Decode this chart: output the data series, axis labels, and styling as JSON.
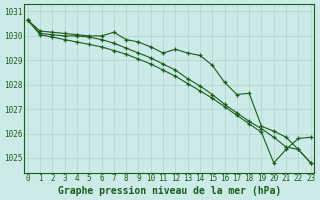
{
  "title": "Graphe pression niveau de la mer (hPa)",
  "xlabel_hours": [
    0,
    1,
    2,
    3,
    4,
    5,
    6,
    7,
    8,
    9,
    10,
    11,
    12,
    13,
    14,
    15,
    16,
    17,
    18,
    19,
    20,
    21,
    22,
    23
  ],
  "line1": [
    1030.65,
    1030.2,
    1030.15,
    1030.1,
    1030.05,
    1030.0,
    1030.0,
    1030.15,
    1029.85,
    1029.75,
    1029.55,
    1029.3,
    1029.45,
    1029.3,
    1029.2,
    1028.8,
    1028.1,
    1027.6,
    1027.65,
    1026.3,
    1026.1,
    1025.85,
    1025.35,
    1024.8
  ],
  "line2": [
    1030.65,
    1030.1,
    1030.05,
    1030.0,
    1030.0,
    1029.95,
    1029.85,
    1029.7,
    1029.5,
    1029.3,
    1029.1,
    1028.85,
    1028.6,
    1028.25,
    1027.95,
    1027.6,
    1027.2,
    1026.85,
    1026.5,
    1026.2,
    1025.85,
    1025.45,
    1025.35,
    1024.8
  ],
  "line3": [
    1030.65,
    1030.05,
    1029.95,
    1029.85,
    1029.75,
    1029.65,
    1029.55,
    1029.4,
    1029.25,
    1029.05,
    1028.85,
    1028.6,
    1028.35,
    1028.05,
    1027.75,
    1027.45,
    1027.1,
    1026.75,
    1026.4,
    1026.05,
    1024.8,
    1025.35,
    1025.8,
    1025.85
  ],
  "ylim": [
    1024.4,
    1031.3
  ],
  "yticks": [
    1025,
    1026,
    1027,
    1028,
    1029,
    1030,
    1031
  ],
  "line_color": "#1a5c1a",
  "bg_color": "#cceae8",
  "grid_color": "#b0d4d0",
  "title_color": "#1a5c1a",
  "title_fontsize": 7.0,
  "tick_fontsize": 5.5
}
